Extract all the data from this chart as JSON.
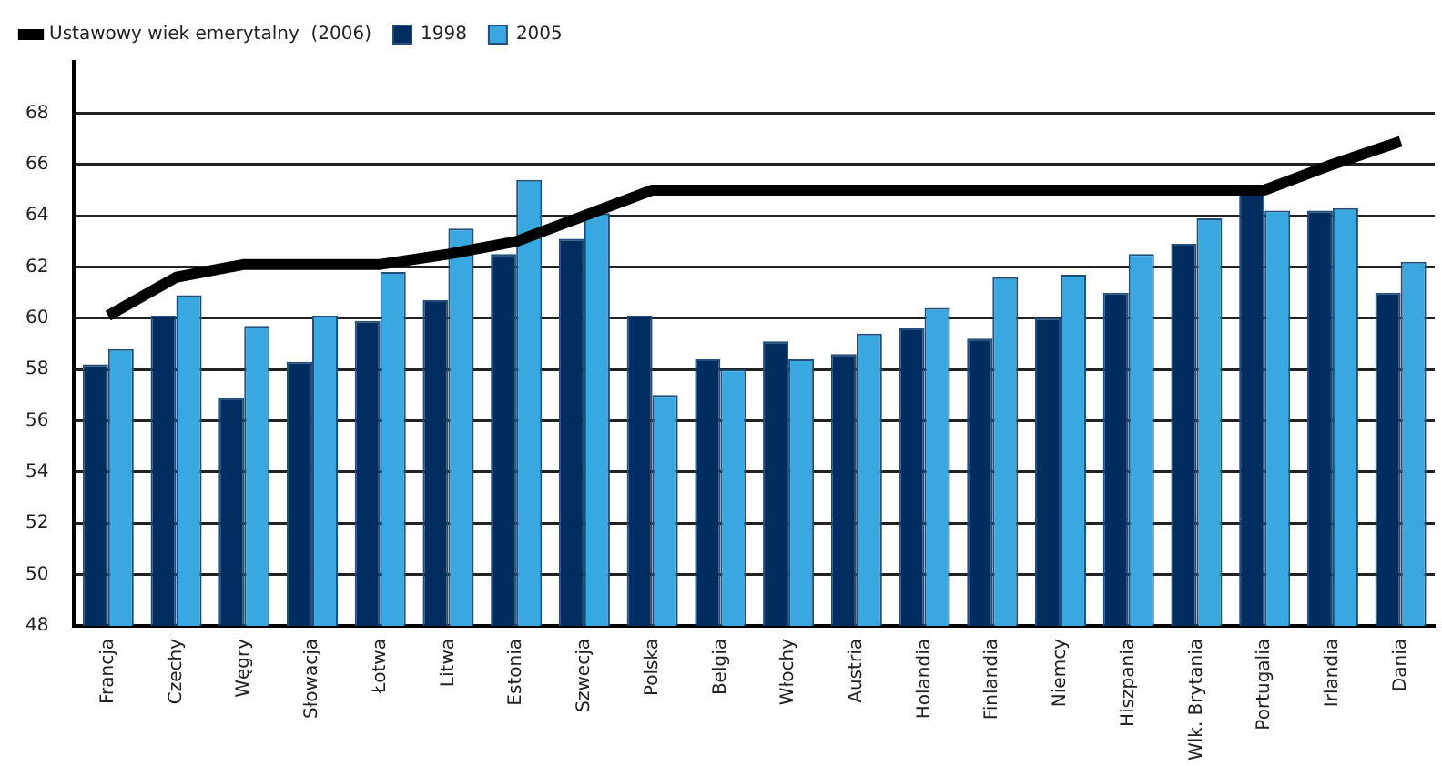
{
  "chart_data": {
    "type": "bar",
    "categories": [
      "Francja",
      "Czechy",
      "Węgry",
      "Słowacja",
      "Łotwa",
      "Litwa",
      "Estonia",
      "Szwecja",
      "Polska",
      "Belgia",
      "Włochy",
      "Austria",
      "Holandia",
      "Finlandia",
      "Niemcy",
      "Hiszpania",
      "Wlk. Brytania",
      "Portugalia",
      "Irlandia",
      "Dania"
    ],
    "series": [
      {
        "name": "1998",
        "color": "#002d5f",
        "values": [
          58.2,
          60.1,
          56.9,
          58.3,
          59.9,
          60.7,
          62.5,
          63.1,
          60.1,
          58.4,
          59.1,
          58.6,
          59.6,
          59.2,
          60.0,
          61.0,
          62.9,
          65.0,
          64.2,
          61.0
        ]
      },
      {
        "name": "2005",
        "color": "#3aa8e0",
        "values": [
          58.8,
          60.9,
          59.7,
          60.1,
          61.8,
          63.5,
          65.4,
          64.1,
          57.0,
          58.0,
          58.4,
          59.4,
          60.4,
          61.6,
          61.7,
          62.5,
          63.9,
          64.2,
          64.3,
          62.2
        ]
      },
      {
        "name": "Ustawowy wiek emerytalny  (2006)",
        "type": "line",
        "color": "#000000",
        "values": [
          60.1,
          61.6,
          62.1,
          62.1,
          62.1,
          62.5,
          63.0,
          64.0,
          65.0,
          65.0,
          65.0,
          65.0,
          65.0,
          65.0,
          65.0,
          65.0,
          65.0,
          65.0,
          66.0,
          66.9
        ]
      }
    ],
    "ylim": [
      48,
      70
    ],
    "yticks": [
      48,
      50,
      52,
      54,
      56,
      58,
      60,
      62,
      64,
      66,
      68
    ],
    "grid": "y",
    "legend": "top left",
    "marker": "none",
    "line_style": "solid"
  }
}
